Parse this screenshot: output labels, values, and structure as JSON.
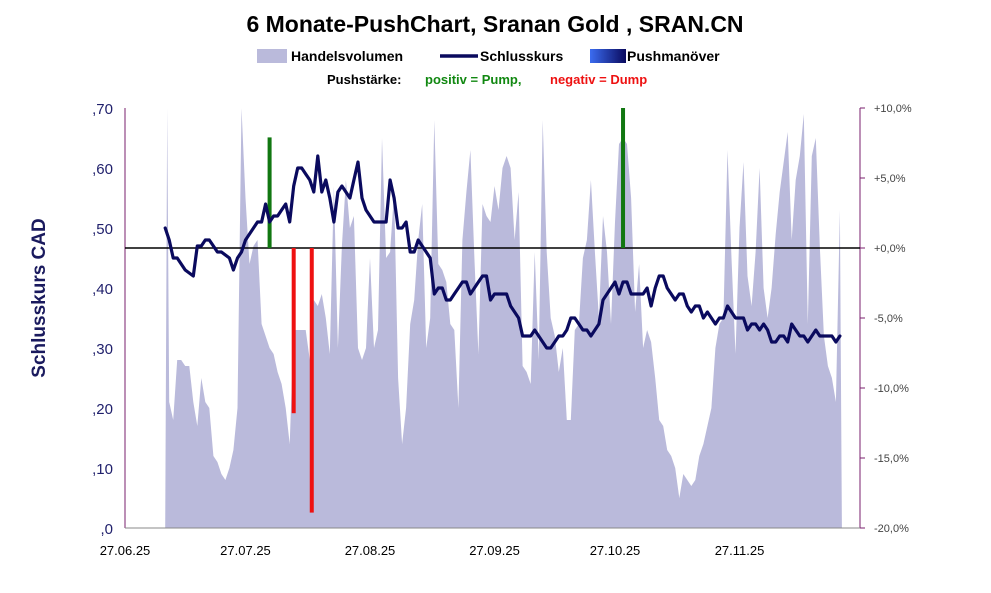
{
  "chart_data": {
    "type": "line",
    "title": "6 Monate-PushChart, Sranan Gold , SRAN.CN",
    "legend": {
      "volume": "Handelsvolumen",
      "close": "Schlusskurs",
      "push": "Pushmanöver"
    },
    "push_strength": {
      "label": "Pushstärke:",
      "positive": "positiv = Pump,",
      "negative": "negativ = Dump"
    },
    "ylabel": "Schlusskurs CAD",
    "ylim": [
      0,
      0.7
    ],
    "y_ticks": [
      ",0",
      ",10",
      ",20",
      ",30",
      ",40",
      ",50",
      ",60",
      ",70"
    ],
    "y2lim": [
      -20,
      10
    ],
    "y2_ticks": [
      "-20,0%",
      "-15,0%",
      "-10,0%",
      "-5,0%",
      "+0,0%",
      "+5,0%",
      "+10,0%"
    ],
    "x_ticks": [
      "27.06.25",
      "27.07.25",
      "27.08.25",
      "27.09.25",
      "27.10.25",
      "27.11.25"
    ],
    "x_range": [
      0,
      183
    ],
    "x_tick_days": [
      0,
      30,
      61,
      92,
      122,
      153
    ],
    "zero_line_pct": 0,
    "colors": {
      "volume": "#babadb",
      "close": "#0a0a5e",
      "pump": "#117711",
      "dump": "#ee1111",
      "axis_right": "#7a1f6e"
    },
    "close_series": [
      [
        10,
        0.5
      ],
      [
        11,
        0.48
      ],
      [
        12,
        0.45
      ],
      [
        13,
        0.45
      ],
      [
        15,
        0.43
      ],
      [
        17,
        0.42
      ],
      [
        18,
        0.47
      ],
      [
        19,
        0.47
      ],
      [
        20,
        0.48
      ],
      [
        21,
        0.48
      ],
      [
        22,
        0.47
      ],
      [
        23,
        0.46
      ],
      [
        24,
        0.46
      ],
      [
        26,
        0.45
      ],
      [
        27,
        0.43
      ],
      [
        28,
        0.45
      ],
      [
        29,
        0.46
      ],
      [
        30,
        0.48
      ],
      [
        31,
        0.49
      ],
      [
        32,
        0.5
      ],
      [
        33,
        0.51
      ],
      [
        34,
        0.51
      ],
      [
        35,
        0.54
      ],
      [
        36,
        0.51
      ],
      [
        37,
        0.52
      ],
      [
        38,
        0.52
      ],
      [
        39,
        0.53
      ],
      [
        40,
        0.54
      ],
      [
        41,
        0.51
      ],
      [
        42,
        0.57
      ],
      [
        43,
        0.6
      ],
      [
        44,
        0.6
      ],
      [
        45,
        0.59
      ],
      [
        46,
        0.58
      ],
      [
        47,
        0.56
      ],
      [
        48,
        0.62
      ],
      [
        49,
        0.56
      ],
      [
        50,
        0.58
      ],
      [
        51,
        0.55
      ],
      [
        52,
        0.51
      ],
      [
        53,
        0.56
      ],
      [
        54,
        0.57
      ],
      [
        55,
        0.56
      ],
      [
        56,
        0.55
      ],
      [
        57,
        0.58
      ],
      [
        58,
        0.61
      ],
      [
        59,
        0.55
      ],
      [
        60,
        0.53
      ],
      [
        61,
        0.52
      ],
      [
        62,
        0.51
      ],
      [
        63,
        0.51
      ],
      [
        64,
        0.51
      ],
      [
        65,
        0.51
      ],
      [
        66,
        0.58
      ],
      [
        67,
        0.55
      ],
      [
        68,
        0.5
      ],
      [
        69,
        0.5
      ],
      [
        70,
        0.51
      ],
      [
        71,
        0.46
      ],
      [
        72,
        0.46
      ],
      [
        73,
        0.48
      ],
      [
        74,
        0.47
      ],
      [
        75,
        0.46
      ],
      [
        76,
        0.45
      ],
      [
        77,
        0.39
      ],
      [
        78,
        0.4
      ],
      [
        79,
        0.4
      ],
      [
        80,
        0.38
      ],
      [
        81,
        0.38
      ],
      [
        82,
        0.39
      ],
      [
        83,
        0.4
      ],
      [
        84,
        0.41
      ],
      [
        85,
        0.41
      ],
      [
        86,
        0.39
      ],
      [
        87,
        0.4
      ],
      [
        88,
        0.41
      ],
      [
        89,
        0.42
      ],
      [
        90,
        0.42
      ],
      [
        91,
        0.38
      ],
      [
        92,
        0.39
      ],
      [
        93,
        0.39
      ],
      [
        95,
        0.39
      ],
      [
        96,
        0.37
      ],
      [
        97,
        0.36
      ],
      [
        98,
        0.35
      ],
      [
        99,
        0.32
      ],
      [
        101,
        0.32
      ],
      [
        102,
        0.33
      ],
      [
        103,
        0.32
      ],
      [
        104,
        0.31
      ],
      [
        105,
        0.3
      ],
      [
        106,
        0.3
      ],
      [
        107,
        0.31
      ],
      [
        108,
        0.32
      ],
      [
        109,
        0.32
      ],
      [
        110,
        0.33
      ],
      [
        111,
        0.35
      ],
      [
        112,
        0.35
      ],
      [
        113,
        0.34
      ],
      [
        114,
        0.33
      ],
      [
        115,
        0.33
      ],
      [
        116,
        0.32
      ],
      [
        117,
        0.33
      ],
      [
        118,
        0.34
      ],
      [
        119,
        0.38
      ],
      [
        120,
        0.39
      ],
      [
        121,
        0.4
      ],
      [
        122,
        0.41
      ],
      [
        123,
        0.39
      ],
      [
        124,
        0.41
      ],
      [
        125,
        0.41
      ],
      [
        126,
        0.39
      ],
      [
        127,
        0.39
      ],
      [
        128,
        0.39
      ],
      [
        129,
        0.39
      ],
      [
        130,
        0.4
      ],
      [
        131,
        0.37
      ],
      [
        132,
        0.4
      ],
      [
        133,
        0.42
      ],
      [
        134,
        0.42
      ],
      [
        135,
        0.4
      ],
      [
        136,
        0.39
      ],
      [
        137,
        0.38
      ],
      [
        138,
        0.39
      ],
      [
        139,
        0.39
      ],
      [
        140,
        0.37
      ],
      [
        141,
        0.36
      ],
      [
        142,
        0.37
      ],
      [
        143,
        0.37
      ],
      [
        144,
        0.35
      ],
      [
        145,
        0.36
      ],
      [
        146,
        0.35
      ],
      [
        147,
        0.34
      ],
      [
        148,
        0.35
      ],
      [
        149,
        0.35
      ],
      [
        150,
        0.37
      ],
      [
        151,
        0.36
      ],
      [
        152,
        0.35
      ],
      [
        153,
        0.35
      ],
      [
        154,
        0.35
      ],
      [
        155,
        0.33
      ],
      [
        156,
        0.34
      ],
      [
        157,
        0.34
      ],
      [
        158,
        0.33
      ],
      [
        159,
        0.34
      ],
      [
        160,
        0.33
      ],
      [
        161,
        0.31
      ],
      [
        162,
        0.31
      ],
      [
        163,
        0.32
      ],
      [
        164,
        0.32
      ],
      [
        165,
        0.31
      ],
      [
        166,
        0.34
      ],
      [
        167,
        0.33
      ],
      [
        168,
        0.32
      ],
      [
        169,
        0.32
      ],
      [
        170,
        0.31
      ],
      [
        171,
        0.32
      ],
      [
        172,
        0.33
      ],
      [
        173,
        0.32
      ],
      [
        174,
        0.32
      ],
      [
        175,
        0.32
      ],
      [
        176,
        0.32
      ],
      [
        177,
        0.31
      ],
      [
        178,
        0.32
      ]
    ],
    "volume_series": [
      [
        10,
        0.0
      ],
      [
        10.5,
        0.72
      ],
      [
        11,
        0.21
      ],
      [
        12,
        0.18
      ],
      [
        13,
        0.28
      ],
      [
        14,
        0.28
      ],
      [
        15,
        0.27
      ],
      [
        16,
        0.27
      ],
      [
        17,
        0.21
      ],
      [
        18,
        0.17
      ],
      [
        19,
        0.25
      ],
      [
        20,
        0.21
      ],
      [
        21,
        0.2
      ],
      [
        22,
        0.12
      ],
      [
        23,
        0.11
      ],
      [
        24,
        0.09
      ],
      [
        25,
        0.08
      ],
      [
        26,
        0.1
      ],
      [
        27,
        0.13
      ],
      [
        28,
        0.2
      ],
      [
        29,
        0.74
      ],
      [
        30,
        0.55
      ],
      [
        31,
        0.44
      ],
      [
        32,
        0.47
      ],
      [
        33,
        0.48
      ],
      [
        34,
        0.34
      ],
      [
        35,
        0.32
      ],
      [
        36,
        0.3
      ],
      [
        37,
        0.29
      ],
      [
        38,
        0.26
      ],
      [
        39,
        0.24
      ],
      [
        40,
        0.2
      ],
      [
        41,
        0.14
      ],
      [
        42,
        0.33
      ],
      [
        43,
        0.33
      ],
      [
        44,
        0.33
      ],
      [
        45,
        0.33
      ],
      [
        46,
        0.28
      ],
      [
        47,
        0.38
      ],
      [
        48,
        0.37
      ],
      [
        49,
        0.39
      ],
      [
        50,
        0.35
      ],
      [
        51,
        0.29
      ],
      [
        52,
        0.57
      ],
      [
        53,
        0.3
      ],
      [
        54,
        0.47
      ],
      [
        55,
        0.58
      ],
      [
        56,
        0.5
      ],
      [
        57,
        0.52
      ],
      [
        58,
        0.3
      ],
      [
        59,
        0.28
      ],
      [
        60,
        0.3
      ],
      [
        61,
        0.45
      ],
      [
        62,
        0.3
      ],
      [
        63,
        0.33
      ],
      [
        64,
        0.65
      ],
      [
        65,
        0.45
      ],
      [
        66,
        0.46
      ],
      [
        67,
        0.56
      ],
      [
        68,
        0.25
      ],
      [
        69,
        0.14
      ],
      [
        70,
        0.2
      ],
      [
        71,
        0.34
      ],
      [
        72,
        0.38
      ],
      [
        73,
        0.48
      ],
      [
        74,
        0.54
      ],
      [
        75,
        0.3
      ],
      [
        76,
        0.35
      ],
      [
        77,
        0.68
      ],
      [
        78,
        0.44
      ],
      [
        79,
        0.43
      ],
      [
        80,
        0.41
      ],
      [
        81,
        0.34
      ],
      [
        82,
        0.33
      ],
      [
        83,
        0.2
      ],
      [
        84,
        0.48
      ],
      [
        85,
        0.56
      ],
      [
        86,
        0.63
      ],
      [
        87,
        0.45
      ],
      [
        88,
        0.29
      ],
      [
        89,
        0.54
      ],
      [
        90,
        0.52
      ],
      [
        91,
        0.51
      ],
      [
        92,
        0.57
      ],
      [
        93,
        0.53
      ],
      [
        94,
        0.6
      ],
      [
        95,
        0.62
      ],
      [
        96,
        0.6
      ],
      [
        97,
        0.48
      ],
      [
        98,
        0.56
      ],
      [
        99,
        0.27
      ],
      [
        100,
        0.26
      ],
      [
        101,
        0.24
      ],
      [
        102,
        0.46
      ],
      [
        103,
        0.28
      ],
      [
        104,
        0.68
      ],
      [
        105,
        0.46
      ],
      [
        106,
        0.35
      ],
      [
        107,
        0.32
      ],
      [
        108,
        0.26
      ],
      [
        109,
        0.3
      ],
      [
        110,
        0.18
      ],
      [
        111,
        0.18
      ],
      [
        112,
        0.33
      ],
      [
        113,
        0.34
      ],
      [
        114,
        0.45
      ],
      [
        115,
        0.48
      ],
      [
        116,
        0.58
      ],
      [
        117,
        0.46
      ],
      [
        118,
        0.35
      ],
      [
        119,
        0.52
      ],
      [
        120,
        0.46
      ],
      [
        121,
        0.34
      ],
      [
        122,
        0.51
      ],
      [
        123,
        0.64
      ],
      [
        124,
        0.65
      ],
      [
        125,
        0.64
      ],
      [
        126,
        0.55
      ],
      [
        127,
        0.36
      ],
      [
        128,
        0.44
      ],
      [
        129,
        0.3
      ],
      [
        130,
        0.33
      ],
      [
        131,
        0.31
      ],
      [
        132,
        0.25
      ],
      [
        133,
        0.18
      ],
      [
        134,
        0.17
      ],
      [
        135,
        0.13
      ],
      [
        136,
        0.12
      ],
      [
        137,
        0.1
      ],
      [
        138,
        0.05
      ],
      [
        139,
        0.09
      ],
      [
        140,
        0.08
      ],
      [
        141,
        0.07
      ],
      [
        142,
        0.08
      ],
      [
        143,
        0.12
      ],
      [
        144,
        0.14
      ],
      [
        145,
        0.17
      ],
      [
        146,
        0.2
      ],
      [
        147,
        0.3
      ],
      [
        148,
        0.34
      ],
      [
        149,
        0.35
      ],
      [
        150,
        0.63
      ],
      [
        151,
        0.45
      ],
      [
        152,
        0.29
      ],
      [
        153,
        0.5
      ],
      [
        154,
        0.61
      ],
      [
        155,
        0.42
      ],
      [
        156,
        0.37
      ],
      [
        157,
        0.46
      ],
      [
        158,
        0.6
      ],
      [
        159,
        0.4
      ],
      [
        160,
        0.35
      ],
      [
        161,
        0.4
      ],
      [
        162,
        0.49
      ],
      [
        163,
        0.56
      ],
      [
        164,
        0.61
      ],
      [
        165,
        0.66
      ],
      [
        166,
        0.48
      ],
      [
        167,
        0.58
      ],
      [
        168,
        0.62
      ],
      [
        169,
        0.69
      ],
      [
        170,
        0.34
      ],
      [
        171,
        0.62
      ],
      [
        172,
        0.65
      ],
      [
        173,
        0.47
      ],
      [
        174,
        0.32
      ],
      [
        175,
        0.27
      ],
      [
        176,
        0.25
      ],
      [
        177,
        0.21
      ],
      [
        178,
        0.53
      ],
      [
        178.5,
        0.0
      ]
    ],
    "push_bars": [
      {
        "day": 36,
        "pct": 7.9,
        "kind": "pump"
      },
      {
        "day": 42,
        "pct": -11.8,
        "kind": "dump"
      },
      {
        "day": 46.5,
        "pct": -18.9,
        "kind": "dump"
      },
      {
        "day": 124,
        "pct": 10.0,
        "kind": "pump"
      }
    ]
  }
}
